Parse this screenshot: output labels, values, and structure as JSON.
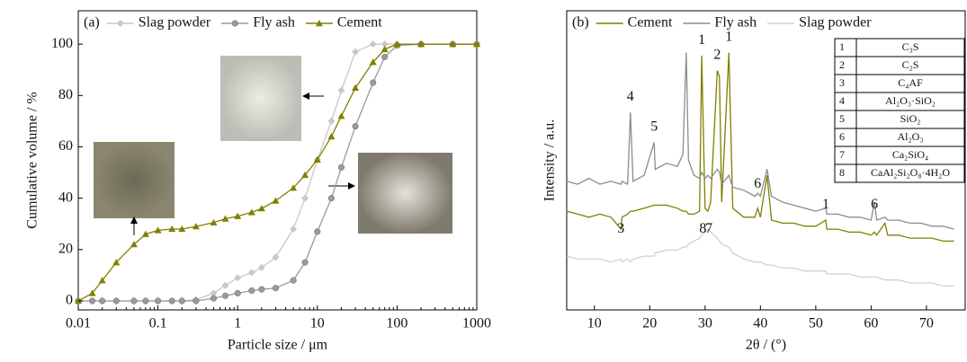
{
  "chart_data": [
    {
      "type": "line",
      "panel_label": "(a)",
      "xlabel": "Particle size / μm",
      "ylabel": "Cumulative volume / %",
      "xscale": "log",
      "xlim": [
        0.01,
        1000
      ],
      "xticks": [
        0.01,
        0.1,
        1,
        10,
        100,
        1000
      ],
      "ylim": [
        -3.5,
        113
      ],
      "yticks": [
        0,
        20,
        40,
        60,
        80,
        100
      ],
      "x": [
        0.01,
        0.015,
        0.02,
        0.03,
        0.05,
        0.07,
        0.1,
        0.15,
        0.2,
        0.3,
        0.5,
        0.7,
        1,
        1.5,
        2,
        3,
        5,
        7,
        10,
        15,
        20,
        30,
        50,
        70,
        100,
        200,
        500,
        1000
      ],
      "series": [
        {
          "name": "Slag powder",
          "color": "#c8c8c8",
          "marker": "diamond",
          "values": [
            0,
            0,
            0,
            0,
            0,
            0,
            0,
            0,
            0,
            0.5,
            3,
            6,
            9,
            11,
            13,
            17,
            28,
            40,
            55,
            70,
            82,
            97,
            100,
            100,
            100,
            100,
            100,
            100
          ]
        },
        {
          "name": "Fly ash",
          "color": "#9a9a9a",
          "marker": "circle",
          "values": [
            0,
            0,
            0,
            0,
            0,
            0,
            0,
            0,
            0,
            0,
            1,
            2,
            3,
            4,
            4.5,
            5,
            8,
            15,
            27,
            40,
            52,
            68,
            85,
            95,
            99.5,
            100,
            100,
            100
          ]
        },
        {
          "name": "Cement",
          "color": "#808000",
          "marker": "triangle",
          "values": [
            0,
            3,
            8,
            15,
            22,
            26,
            27.5,
            28,
            28,
            29,
            30.5,
            32,
            33,
            34.5,
            36,
            39,
            44,
            49,
            55,
            64,
            72,
            83,
            93,
            98,
            100,
            100,
            100,
            100
          ]
        }
      ]
    },
    {
      "type": "line",
      "panel_label": "(b)",
      "xlabel": "2θ / (°)",
      "ylabel": "Intensity / a.u.",
      "xlim": [
        5,
        77
      ],
      "xticks": [
        10,
        20,
        30,
        40,
        50,
        60,
        70
      ],
      "ylim": [
        0,
        100
      ],
      "x": [
        5,
        7,
        9,
        11,
        13,
        14.8,
        15,
        16,
        16.5,
        17,
        19,
        20.8,
        21,
        23,
        25,
        26,
        26.6,
        27,
        28,
        29,
        29.4,
        30,
        30.5,
        31,
        32.2,
        32.6,
        33,
        34.3,
        35,
        37,
        39,
        39.5,
        40,
        41.2,
        42,
        44,
        46,
        48,
        50,
        51.8,
        52,
        54,
        56,
        58,
        60,
        60.6,
        61,
        62.5,
        63,
        65,
        67,
        69,
        71,
        73,
        75
      ],
      "series": [
        {
          "name": "Cement",
          "color": "#7f7f00",
          "values": [
            33,
            32,
            31,
            32,
            31,
            27,
            31,
            32,
            33,
            33,
            34,
            35,
            35,
            35,
            34,
            33,
            33,
            32,
            32,
            33,
            85,
            34,
            33,
            36,
            80,
            78,
            36,
            86,
            34,
            31,
            31,
            34,
            31,
            45,
            30,
            29,
            29,
            28,
            28,
            30,
            27,
            27,
            26,
            26,
            25,
            26,
            25,
            29,
            25,
            25,
            24,
            24,
            24,
            23,
            23
          ]
        },
        {
          "name": "Fly ash",
          "color": "#8c8c8c",
          "values": [
            43,
            42,
            44,
            42,
            43,
            42,
            43,
            42,
            66,
            43,
            45,
            56,
            47,
            49,
            48,
            52,
            86,
            50,
            45,
            44,
            46,
            44,
            45,
            44,
            47,
            46,
            42,
            45,
            41,
            40,
            38,
            39,
            38,
            47,
            38,
            36,
            35,
            34,
            33,
            34,
            32,
            32,
            31,
            31,
            30,
            36,
            30,
            31,
            30,
            30,
            29,
            29,
            28,
            28,
            27
          ]
        },
        {
          "name": "Slag powder",
          "color": "#d0d0d0",
          "values": [
            18,
            17,
            17,
            17,
            16,
            17,
            16,
            17,
            16,
            17,
            18,
            18,
            19,
            20,
            20,
            21,
            21,
            22,
            23,
            24,
            25,
            26,
            27,
            26,
            24,
            23,
            22,
            21,
            19,
            17,
            16,
            16,
            16,
            15,
            15,
            14,
            14,
            13,
            13,
            13,
            12,
            12,
            12,
            11,
            11,
            11,
            11,
            10,
            10,
            10,
            9,
            9,
            9,
            8,
            8
          ]
        }
      ],
      "annotations": [
        {
          "text": "4",
          "x": 16.5,
          "y": 71
        },
        {
          "text": "5",
          "x": 20.8,
          "y": 61
        },
        {
          "text": "1",
          "x": 29.4,
          "y": 90
        },
        {
          "text": "2",
          "x": 32.2,
          "y": 85
        },
        {
          "text": "1",
          "x": 34.3,
          "y": 91
        },
        {
          "text": "6",
          "x": 39.5,
          "y": 42
        },
        {
          "text": "1",
          "x": 51.8,
          "y": 35
        },
        {
          "text": "6",
          "x": 60.6,
          "y": 35
        },
        {
          "text": "3",
          "x": 14.8,
          "y": 27
        },
        {
          "text": "8",
          "x": 29.6,
          "y": 27
        },
        {
          "text": "7",
          "x": 30.7,
          "y": 27
        }
      ],
      "phase_table": [
        [
          "1",
          "C₃S"
        ],
        [
          "2",
          "C₂S"
        ],
        [
          "3",
          "C₄AF"
        ],
        [
          "4",
          "Al₂O₃·SiO₂"
        ],
        [
          "5",
          "SiO₂"
        ],
        [
          "6",
          "Al₂O₃"
        ],
        [
          "7",
          "Ca₂SiO₄"
        ],
        [
          "8",
          "CaAl₂Si₂O₈·4H₂O"
        ]
      ]
    }
  ]
}
